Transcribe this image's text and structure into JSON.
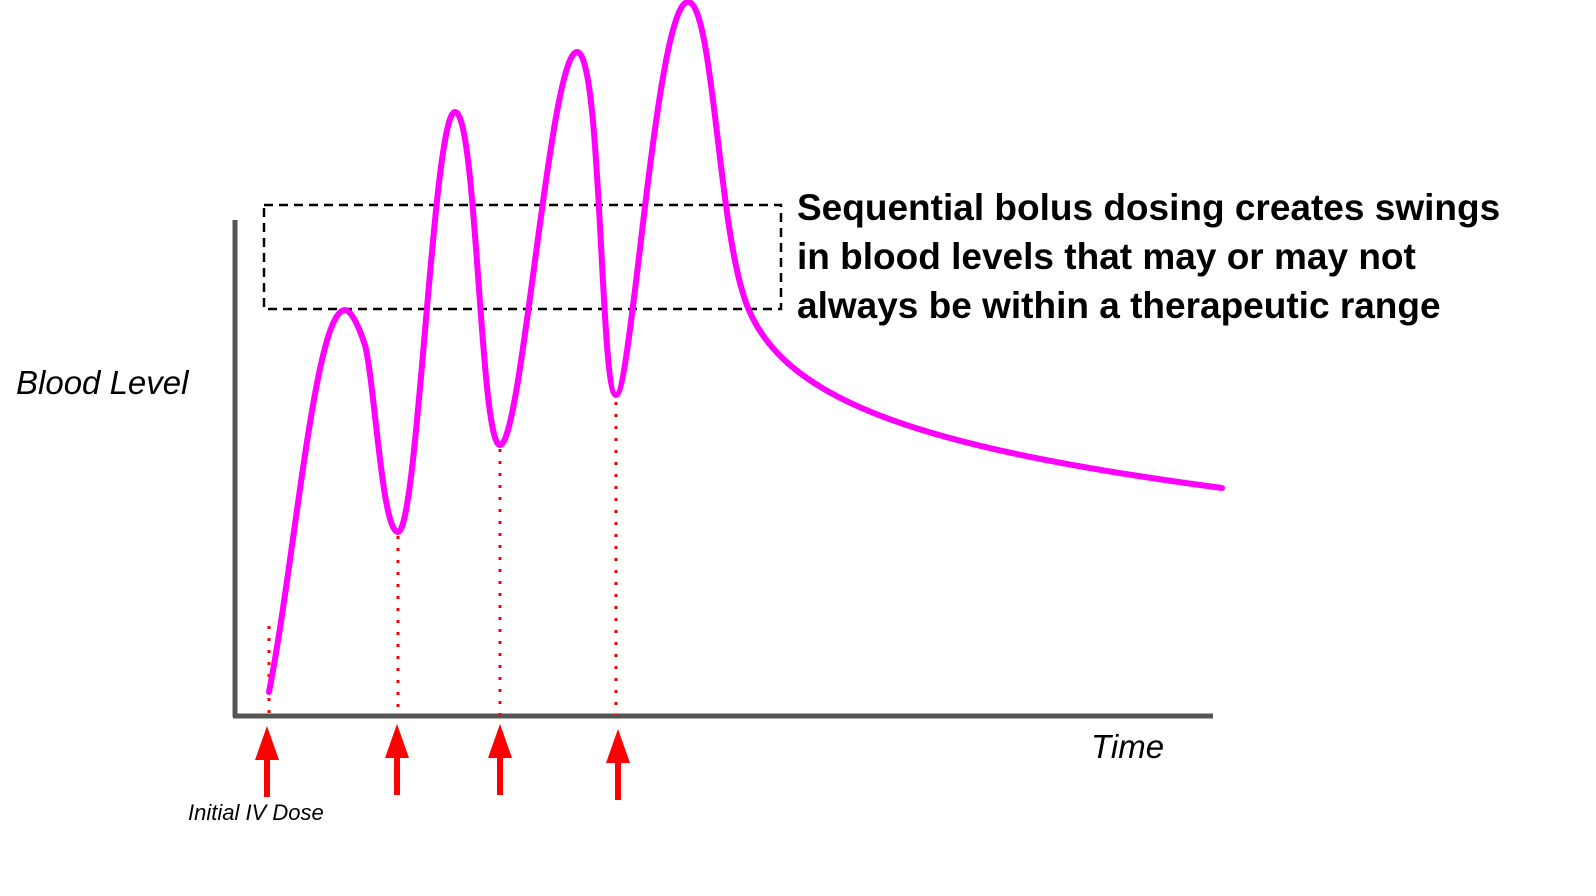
{
  "labels": {
    "y_axis": "Blood Level",
    "x_axis": "Time",
    "initial_dose": "Initial IV Dose",
    "annotation": "Sequential bolus dosing creates swings in blood levels that may or may not always be within a therapeutic range"
  },
  "colors": {
    "curve": "#ff00ff",
    "arrows": "#ff0000",
    "dose_markers": "#ff0000",
    "axes": "#555555",
    "therapeutic_box": "#000000"
  },
  "doses": [
    {
      "name": "initial",
      "labeled": true
    },
    {
      "name": "dose-2",
      "labeled": false
    },
    {
      "name": "dose-3",
      "labeled": false
    },
    {
      "name": "dose-4",
      "labeled": false
    }
  ],
  "icons": [
    "up-arrow-icon"
  ]
}
